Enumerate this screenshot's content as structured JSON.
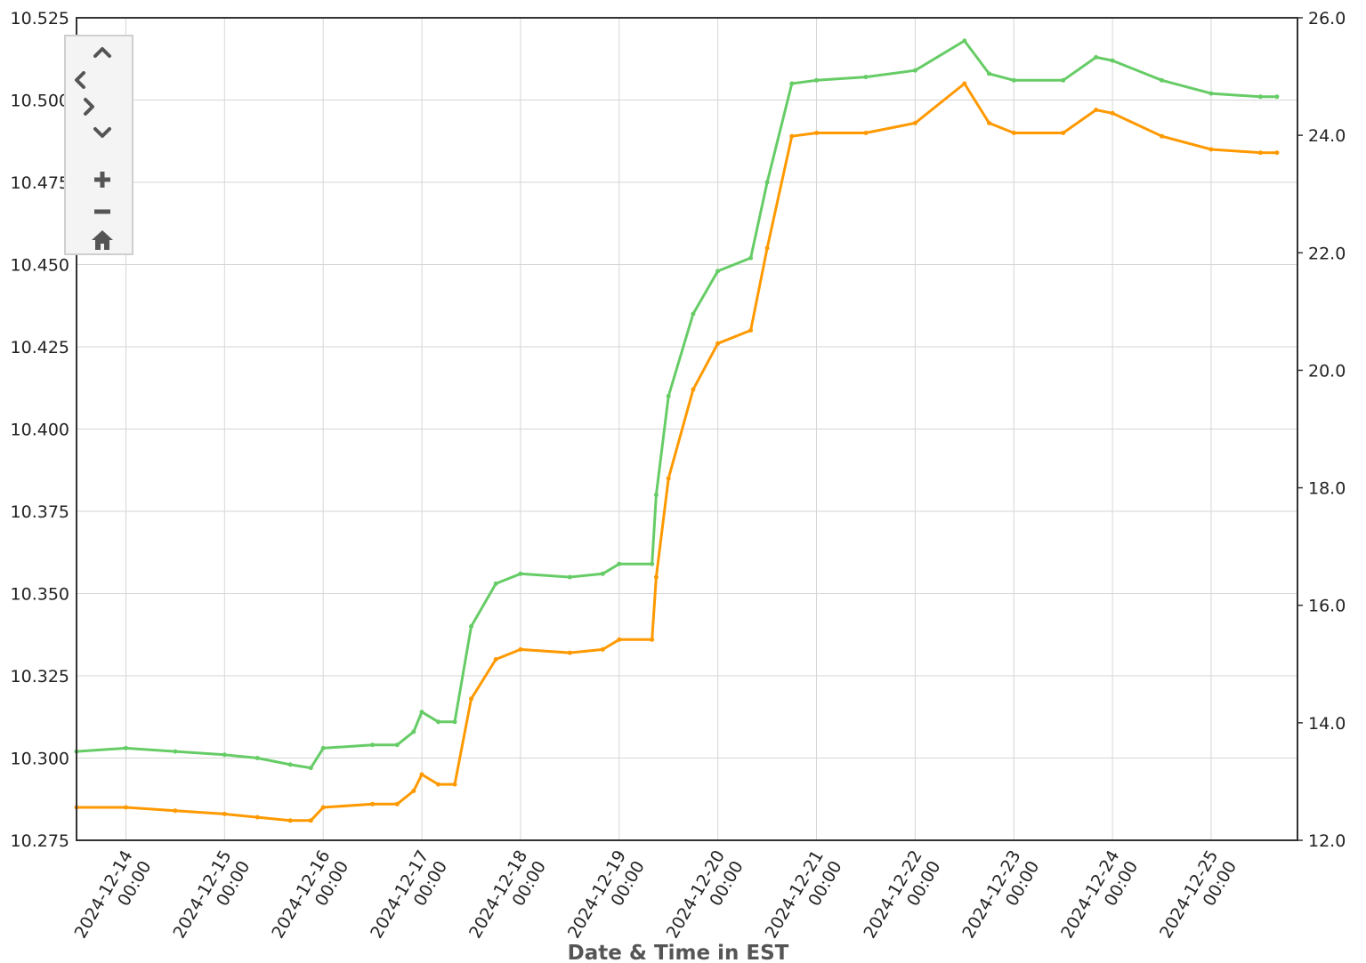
{
  "chart_data": {
    "type": "line",
    "xlabel": "Date & Time in EST",
    "y_left_label": "",
    "y_right_label": "",
    "x_range": [
      "2024-12-13 12:00",
      "2024-12-25 21:00"
    ],
    "y_left_range": [
      10.275,
      10.525
    ],
    "y_right_range": [
      12.0,
      26.0
    ],
    "y_left_ticks": [
      "10.275",
      "10.300",
      "10.325",
      "10.350",
      "10.375",
      "10.400",
      "10.425",
      "10.450",
      "10.475",
      "10.500",
      "10.525"
    ],
    "y_right_ticks": [
      "12.0",
      "14.0",
      "16.0",
      "18.0",
      "20.0",
      "22.0",
      "24.0",
      "26.0"
    ],
    "x_ticks": [
      {
        "date": "2024-12-14",
        "time": "00:00"
      },
      {
        "date": "2024-12-15",
        "time": "00:00"
      },
      {
        "date": "2024-12-16",
        "time": "00:00"
      },
      {
        "date": "2024-12-17",
        "time": "00:00"
      },
      {
        "date": "2024-12-18",
        "time": "00:00"
      },
      {
        "date": "2024-12-19",
        "time": "00:00"
      },
      {
        "date": "2024-12-20",
        "time": "00:00"
      },
      {
        "date": "2024-12-21",
        "time": "00:00"
      },
      {
        "date": "2024-12-22",
        "time": "00:00"
      },
      {
        "date": "2024-12-23",
        "time": "00:00"
      },
      {
        "date": "2024-12-24",
        "time": "00:00"
      },
      {
        "date": "2024-12-25",
        "time": "00:00"
      }
    ],
    "grid": true,
    "series": [
      {
        "color": "#66cc66",
        "axis": "left",
        "points": [
          [
            "2024-12-13 12:00",
            10.302
          ],
          [
            "2024-12-14 00:00",
            10.303
          ],
          [
            "2024-12-14 12:00",
            10.302
          ],
          [
            "2024-12-15 00:00",
            10.301
          ],
          [
            "2024-12-15 08:00",
            10.3
          ],
          [
            "2024-12-15 16:00",
            10.298
          ],
          [
            "2024-12-15 21:00",
            10.297
          ],
          [
            "2024-12-16 00:00",
            10.303
          ],
          [
            "2024-12-16 12:00",
            10.304
          ],
          [
            "2024-12-16 18:00",
            10.304
          ],
          [
            "2024-12-16 22:00",
            10.308
          ],
          [
            "2024-12-17 00:00",
            10.314
          ],
          [
            "2024-12-17 04:00",
            10.311
          ],
          [
            "2024-12-17 08:00",
            10.311
          ],
          [
            "2024-12-17 12:00",
            10.34
          ],
          [
            "2024-12-17 18:00",
            10.353
          ],
          [
            "2024-12-18 00:00",
            10.356
          ],
          [
            "2024-12-18 12:00",
            10.355
          ],
          [
            "2024-12-18 20:00",
            10.356
          ],
          [
            "2024-12-19 00:00",
            10.359
          ],
          [
            "2024-12-19 08:00",
            10.359
          ],
          [
            "2024-12-19 09:00",
            10.38
          ],
          [
            "2024-12-19 12:00",
            10.41
          ],
          [
            "2024-12-19 18:00",
            10.435
          ],
          [
            "2024-12-20 00:00",
            10.448
          ],
          [
            "2024-12-20 08:00",
            10.452
          ],
          [
            "2024-12-20 12:00",
            10.475
          ],
          [
            "2024-12-20 18:00",
            10.505
          ],
          [
            "2024-12-21 00:00",
            10.506
          ],
          [
            "2024-12-21 12:00",
            10.507
          ],
          [
            "2024-12-22 00:00",
            10.509
          ],
          [
            "2024-12-22 12:00",
            10.518
          ],
          [
            "2024-12-22 18:00",
            10.508
          ],
          [
            "2024-12-23 00:00",
            10.506
          ],
          [
            "2024-12-23 12:00",
            10.506
          ],
          [
            "2024-12-23 20:00",
            10.513
          ],
          [
            "2024-12-24 00:00",
            10.512
          ],
          [
            "2024-12-24 12:00",
            10.506
          ],
          [
            "2024-12-25 00:00",
            10.502
          ],
          [
            "2024-12-25 12:00",
            10.501
          ],
          [
            "2024-12-25 16:00",
            10.501
          ]
        ]
      },
      {
        "color": "#ff9900",
        "axis": "left",
        "points": [
          [
            "2024-12-13 12:00",
            10.285
          ],
          [
            "2024-12-14 00:00",
            10.285
          ],
          [
            "2024-12-14 12:00",
            10.284
          ],
          [
            "2024-12-15 00:00",
            10.283
          ],
          [
            "2024-12-15 08:00",
            10.282
          ],
          [
            "2024-12-15 16:00",
            10.281
          ],
          [
            "2024-12-15 21:00",
            10.281
          ],
          [
            "2024-12-16 00:00",
            10.285
          ],
          [
            "2024-12-16 12:00",
            10.286
          ],
          [
            "2024-12-16 18:00",
            10.286
          ],
          [
            "2024-12-16 22:00",
            10.29
          ],
          [
            "2024-12-17 00:00",
            10.295
          ],
          [
            "2024-12-17 04:00",
            10.292
          ],
          [
            "2024-12-17 08:00",
            10.292
          ],
          [
            "2024-12-17 12:00",
            10.318
          ],
          [
            "2024-12-17 18:00",
            10.33
          ],
          [
            "2024-12-18 00:00",
            10.333
          ],
          [
            "2024-12-18 12:00",
            10.332
          ],
          [
            "2024-12-18 20:00",
            10.333
          ],
          [
            "2024-12-19 00:00",
            10.336
          ],
          [
            "2024-12-19 08:00",
            10.336
          ],
          [
            "2024-12-19 09:00",
            10.355
          ],
          [
            "2024-12-19 12:00",
            10.385
          ],
          [
            "2024-12-19 18:00",
            10.412
          ],
          [
            "2024-12-20 00:00",
            10.426
          ],
          [
            "2024-12-20 08:00",
            10.43
          ],
          [
            "2024-12-20 12:00",
            10.455
          ],
          [
            "2024-12-20 18:00",
            10.489
          ],
          [
            "2024-12-21 00:00",
            10.49
          ],
          [
            "2024-12-21 12:00",
            10.49
          ],
          [
            "2024-12-22 00:00",
            10.493
          ],
          [
            "2024-12-22 12:00",
            10.505
          ],
          [
            "2024-12-22 18:00",
            10.493
          ],
          [
            "2024-12-23 00:00",
            10.49
          ],
          [
            "2024-12-23 12:00",
            10.49
          ],
          [
            "2024-12-23 20:00",
            10.497
          ],
          [
            "2024-12-24 00:00",
            10.496
          ],
          [
            "2024-12-24 12:00",
            10.489
          ],
          [
            "2024-12-25 00:00",
            10.485
          ],
          [
            "2024-12-25 12:00",
            10.484
          ],
          [
            "2024-12-25 16:00",
            10.484
          ]
        ]
      }
    ]
  },
  "nav": {
    "up_icon": "chevron-up-icon",
    "left_icon": "chevron-left-icon",
    "right_icon": "chevron-right-icon",
    "down_icon": "chevron-down-icon",
    "zoom_in_icon": "plus-icon",
    "zoom_out_icon": "minus-icon",
    "home_icon": "home-icon"
  }
}
